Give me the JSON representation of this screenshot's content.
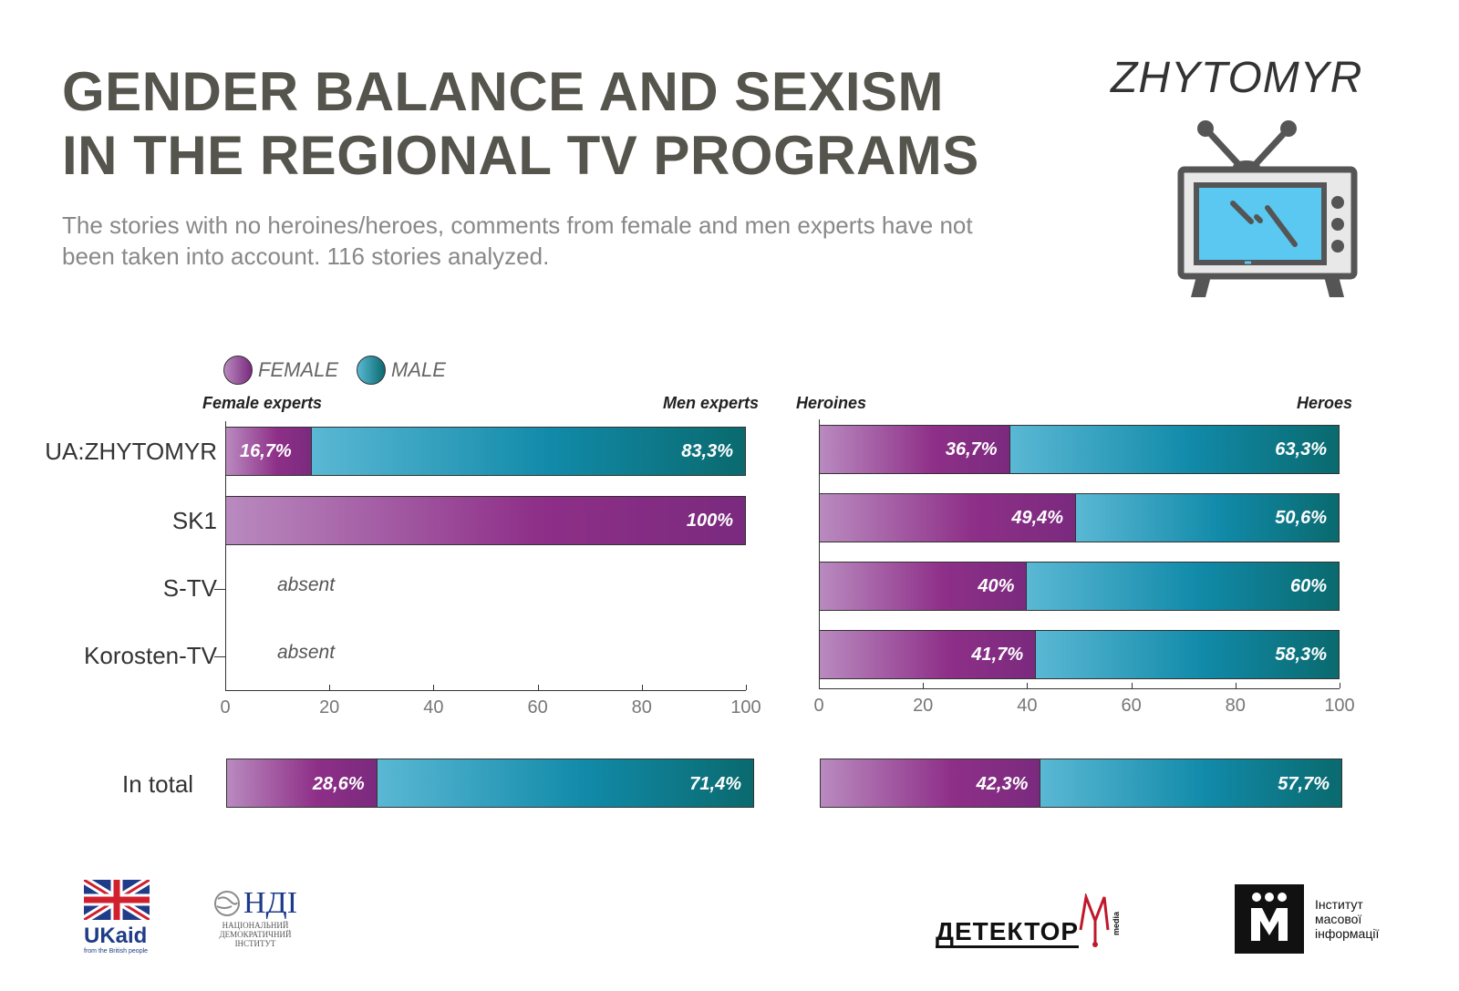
{
  "title_line1": "GENDER BALANCE AND SEXISM",
  "title_line2": "IN THE REGIONAL TV PROGRAMS",
  "subtitle": "The stories with no heroines/heroes, comments from female and men experts have not been taken into account. 116 stories analyzed.",
  "city": "ZHYTOMYR",
  "legend": {
    "female": "FEMALE",
    "male": "MALE"
  },
  "colors": {
    "female": "#8e2f88",
    "male": "#118aa9"
  },
  "tick_values": [
    "0",
    "20",
    "40",
    "60",
    "80",
    "100"
  ],
  "total_label": "In total",
  "chart_data": [
    {
      "type": "bar",
      "stacked": true,
      "orientation": "horizontal",
      "left_header": "Female experts",
      "right_header": "Men experts",
      "categories": [
        "UA:ZHYTOMYR",
        "SK1",
        "S-TV",
        "Korosten-TV"
      ],
      "series": [
        {
          "name": "FEMALE",
          "values": [
            16.7,
            100,
            null,
            null
          ],
          "labels": [
            "16,7%",
            "100%",
            "absent",
            "absent"
          ]
        },
        {
          "name": "MALE",
          "values": [
            83.3,
            0,
            null,
            null
          ],
          "labels": [
            "83,3%",
            "",
            "",
            ""
          ]
        }
      ],
      "total": {
        "female": 28.6,
        "male": 71.4,
        "female_label": "28,6%",
        "male_label": "71,4%"
      },
      "xlim": [
        0,
        100
      ]
    },
    {
      "type": "bar",
      "stacked": true,
      "orientation": "horizontal",
      "left_header": "Heroines",
      "right_header": "Heroes",
      "categories": [
        "UA:ZHYTOMYR",
        "SK1",
        "S-TV",
        "Korosten-TV"
      ],
      "series": [
        {
          "name": "FEMALE",
          "values": [
            36.7,
            49.4,
            40,
            41.7
          ],
          "labels": [
            "36,7%",
            "49,4%",
            "40%",
            "41,7%"
          ]
        },
        {
          "name": "MALE",
          "values": [
            63.3,
            50.6,
            60,
            58.3
          ],
          "labels": [
            "63,3%",
            "50,6%",
            "60%",
            "58,3%"
          ]
        }
      ],
      "total": {
        "female": 42.3,
        "male": 57.7,
        "female_label": "42,3%",
        "male_label": "57,7%"
      },
      "xlim": [
        0,
        100
      ]
    }
  ],
  "logos": {
    "ukaid": "UKaid",
    "ukaid_sub": "from the British people",
    "ndi": "НДІ",
    "ndi_sub1": "НАЦІОНАЛЬНИЙ",
    "ndi_sub2": "ДЕМОКРАТИЧНИЙ",
    "ndi_sub3": "ІНСТИТУТ",
    "detector": "ДЕТЕКТОР",
    "detector_media": "media",
    "imi_line1": "Інститут",
    "imi_line2": "масової",
    "imi_line3": "інформації"
  }
}
